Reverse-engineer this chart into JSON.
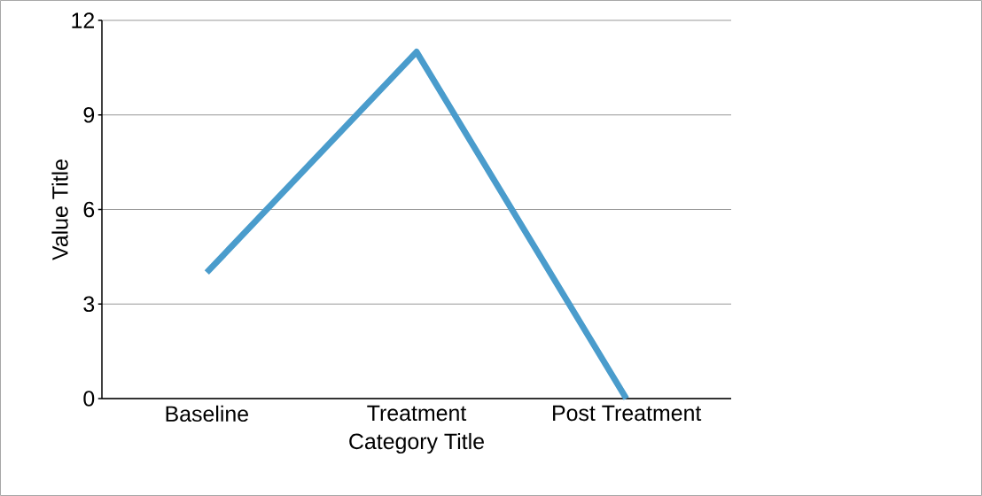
{
  "chart_data": {
    "type": "line",
    "xlabel": "Category Title",
    "ylabel": "Value Title",
    "categories": [
      "Baseline",
      "Treatment",
      "Post Treatment"
    ],
    "series": [
      {
        "color": "#4a9ccc",
        "values": [
          4,
          11,
          0
        ]
      }
    ],
    "ylim": [
      0,
      12
    ],
    "yticks": [
      0,
      3,
      6,
      9,
      12
    ],
    "grid": "y",
    "marker": "none",
    "line_style": "solid"
  }
}
